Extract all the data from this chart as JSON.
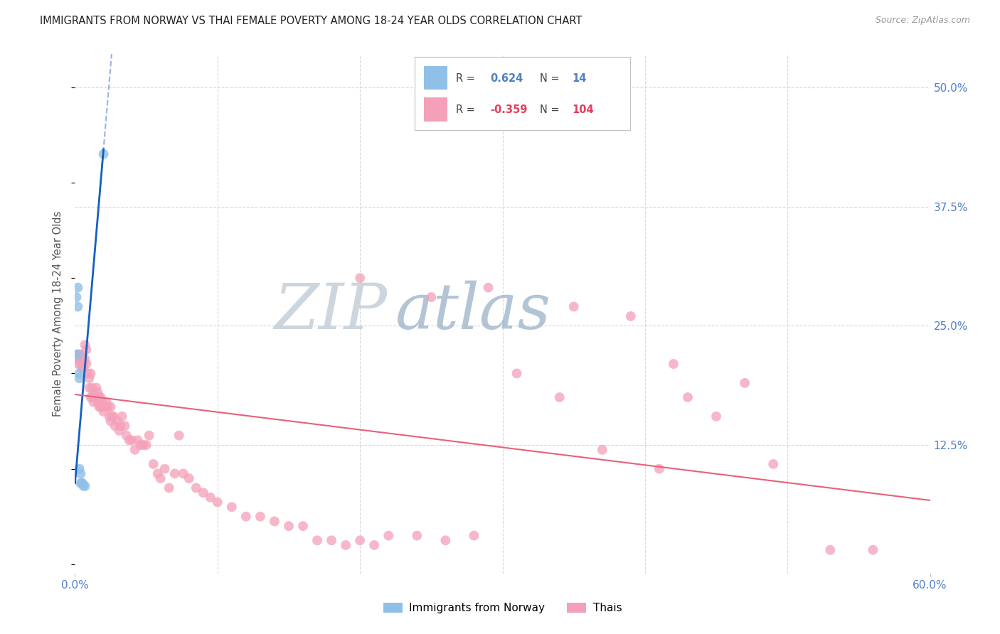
{
  "title": "IMMIGRANTS FROM NORWAY VS THAI FEMALE POVERTY AMONG 18-24 YEAR OLDS CORRELATION CHART",
  "source": "Source: ZipAtlas.com",
  "ylabel": "Female Poverty Among 18-24 Year Olds",
  "xlim": [
    0.0,
    0.6
  ],
  "ylim": [
    -0.01,
    0.535
  ],
  "ytick_values": [
    0.125,
    0.25,
    0.375,
    0.5
  ],
  "ytick_labels": [
    "12.5%",
    "25.0%",
    "37.5%",
    "50.0%"
  ],
  "xtick_left": "0.0%",
  "xtick_right": "60.0%",
  "norway_R": 0.624,
  "norway_N": 14,
  "thai_R": -0.359,
  "thai_N": 104,
  "norway_color": "#90c0e8",
  "thai_color": "#f4a0b8",
  "norway_line_color": "#1560c0",
  "thai_line_color": "#e8607a",
  "background_color": "#ffffff",
  "grid_color": "#d8d8d8",
  "title_color": "#222222",
  "source_color": "#999999",
  "ylabel_color": "#555555",
  "tick_label_color": "#5080c8",
  "norway_scatter_x": [
    0.001,
    0.002,
    0.002,
    0.002,
    0.003,
    0.003,
    0.003,
    0.004,
    0.004,
    0.005,
    0.005,
    0.006,
    0.007,
    0.02
  ],
  "norway_scatter_y": [
    0.28,
    0.29,
    0.27,
    0.22,
    0.2,
    0.195,
    0.1,
    0.095,
    0.085,
    0.085,
    0.085,
    0.082,
    0.082,
    0.43
  ],
  "thai_scatter_x": [
    0.001,
    0.002,
    0.002,
    0.003,
    0.003,
    0.004,
    0.004,
    0.005,
    0.005,
    0.006,
    0.006,
    0.007,
    0.007,
    0.008,
    0.008,
    0.009,
    0.01,
    0.01,
    0.011,
    0.011,
    0.012,
    0.012,
    0.013,
    0.013,
    0.014,
    0.015,
    0.015,
    0.016,
    0.016,
    0.017,
    0.017,
    0.018,
    0.018,
    0.019,
    0.02,
    0.02,
    0.021,
    0.022,
    0.022,
    0.023,
    0.024,
    0.025,
    0.025,
    0.026,
    0.027,
    0.028,
    0.03,
    0.031,
    0.032,
    0.033,
    0.035,
    0.036,
    0.038,
    0.04,
    0.042,
    0.044,
    0.046,
    0.048,
    0.05,
    0.052,
    0.055,
    0.058,
    0.06,
    0.063,
    0.066,
    0.07,
    0.073,
    0.076,
    0.08,
    0.085,
    0.09,
    0.095,
    0.1,
    0.11,
    0.12,
    0.13,
    0.14,
    0.15,
    0.16,
    0.17,
    0.18,
    0.19,
    0.2,
    0.21,
    0.22,
    0.24,
    0.26,
    0.28,
    0.31,
    0.34,
    0.37,
    0.41,
    0.45,
    0.49,
    0.53,
    0.56,
    0.2,
    0.25,
    0.29,
    0.35,
    0.42,
    0.47,
    0.39,
    0.43
  ],
  "thai_scatter_y": [
    0.22,
    0.215,
    0.21,
    0.22,
    0.215,
    0.22,
    0.21,
    0.215,
    0.205,
    0.21,
    0.205,
    0.23,
    0.215,
    0.225,
    0.21,
    0.2,
    0.195,
    0.185,
    0.2,
    0.175,
    0.185,
    0.175,
    0.18,
    0.17,
    0.175,
    0.185,
    0.175,
    0.18,
    0.17,
    0.175,
    0.165,
    0.175,
    0.165,
    0.17,
    0.165,
    0.16,
    0.165,
    0.165,
    0.17,
    0.165,
    0.155,
    0.165,
    0.15,
    0.155,
    0.155,
    0.145,
    0.15,
    0.14,
    0.145,
    0.155,
    0.145,
    0.135,
    0.13,
    0.13,
    0.12,
    0.13,
    0.125,
    0.125,
    0.125,
    0.135,
    0.105,
    0.095,
    0.09,
    0.1,
    0.08,
    0.095,
    0.135,
    0.095,
    0.09,
    0.08,
    0.075,
    0.07,
    0.065,
    0.06,
    0.05,
    0.05,
    0.045,
    0.04,
    0.04,
    0.025,
    0.025,
    0.02,
    0.025,
    0.02,
    0.03,
    0.03,
    0.025,
    0.03,
    0.2,
    0.175,
    0.12,
    0.1,
    0.155,
    0.105,
    0.015,
    0.015,
    0.3,
    0.28,
    0.29,
    0.27,
    0.21,
    0.19,
    0.26,
    0.175
  ]
}
